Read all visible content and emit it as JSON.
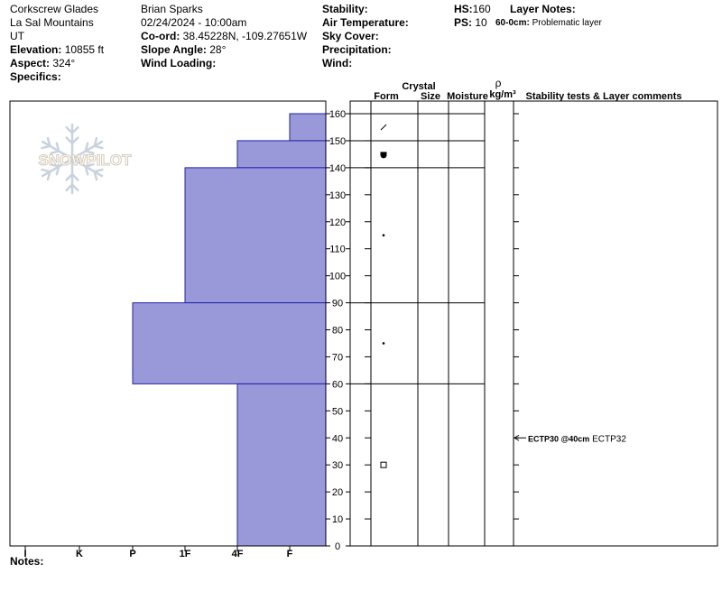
{
  "site": {
    "name": "Corkscrew Glades",
    "range": "La Sal Mountains",
    "state": "UT",
    "elevation_label": "Elevation:",
    "elevation": "10855 ft",
    "aspect_label": "Aspect:",
    "aspect": "324°",
    "specifics_label": "Specifics:"
  },
  "observer": {
    "name": "Brian Sparks",
    "datetime": "02/24/2024 - 10:00am",
    "coord_label": "Co-ord:",
    "coord": "38.45228N, -109.27651W",
    "slope_label": "Slope Angle:",
    "slope": "28°",
    "wind_loading_label": "Wind Loading:"
  },
  "conditions": {
    "stability_label": "Stability:",
    "air_temp_label": "Air Temperature:",
    "sky_label": "Sky Cover:",
    "precip_label": "Precipitation:",
    "wind_label": "Wind:"
  },
  "snowpack": {
    "hs_label": "HS:",
    "hs": "160",
    "ps_label": "PS:",
    "ps": "10",
    "layer_notes_label": "Layer Notes:",
    "layer_note_depth": "60-0cm:",
    "layer_note_text": "Problematic layer"
  },
  "notes_label": "Notes:",
  "logo_text": "SNOWPILOT",
  "columns": {
    "crystal": "Crystal",
    "form": "Form",
    "size": "Size",
    "moisture": "Moisture",
    "rho": "ρ",
    "density_unit": "kg/m³",
    "stability": "Stability tests & Layer comments"
  },
  "colors": {
    "hardness_fill": "#9999d9",
    "hardness_stroke": "#2222aa",
    "logo": "#c9d3de"
  },
  "chart_data": {
    "type": "bar",
    "orientation": "horizontal",
    "x_categories": [
      "I",
      "K",
      "P",
      "1F",
      "4F",
      "F"
    ],
    "y_range": [
      0,
      160
    ],
    "y_ticks": [
      0,
      10,
      20,
      30,
      40,
      50,
      60,
      70,
      80,
      90,
      100,
      110,
      120,
      130,
      140,
      150,
      160
    ],
    "layers": [
      {
        "bottom": 150,
        "top": 160,
        "hardness": "F-"
      },
      {
        "bottom": 140,
        "top": 150,
        "hardness": "4F"
      },
      {
        "bottom": 90,
        "top": 140,
        "hardness": "1F"
      },
      {
        "bottom": 60,
        "top": 90,
        "hardness": "P"
      },
      {
        "bottom": 0,
        "top": 60,
        "hardness": "4F"
      }
    ],
    "layer_boundaries": [
      150,
      140,
      90,
      60
    ],
    "grain_forms": [
      {
        "height": 155,
        "symbol": "decomposing"
      },
      {
        "height": 145,
        "symbol": "rounded-faceted"
      },
      {
        "height": 115,
        "symbol": "rounded"
      },
      {
        "height": 75,
        "symbol": "rounded"
      },
      {
        "height": 30,
        "symbol": "faceted"
      }
    ],
    "stability_tests": [
      {
        "height": 40,
        "test": "ECTP30 @40cm",
        "extra": "ECTP32"
      }
    ]
  }
}
